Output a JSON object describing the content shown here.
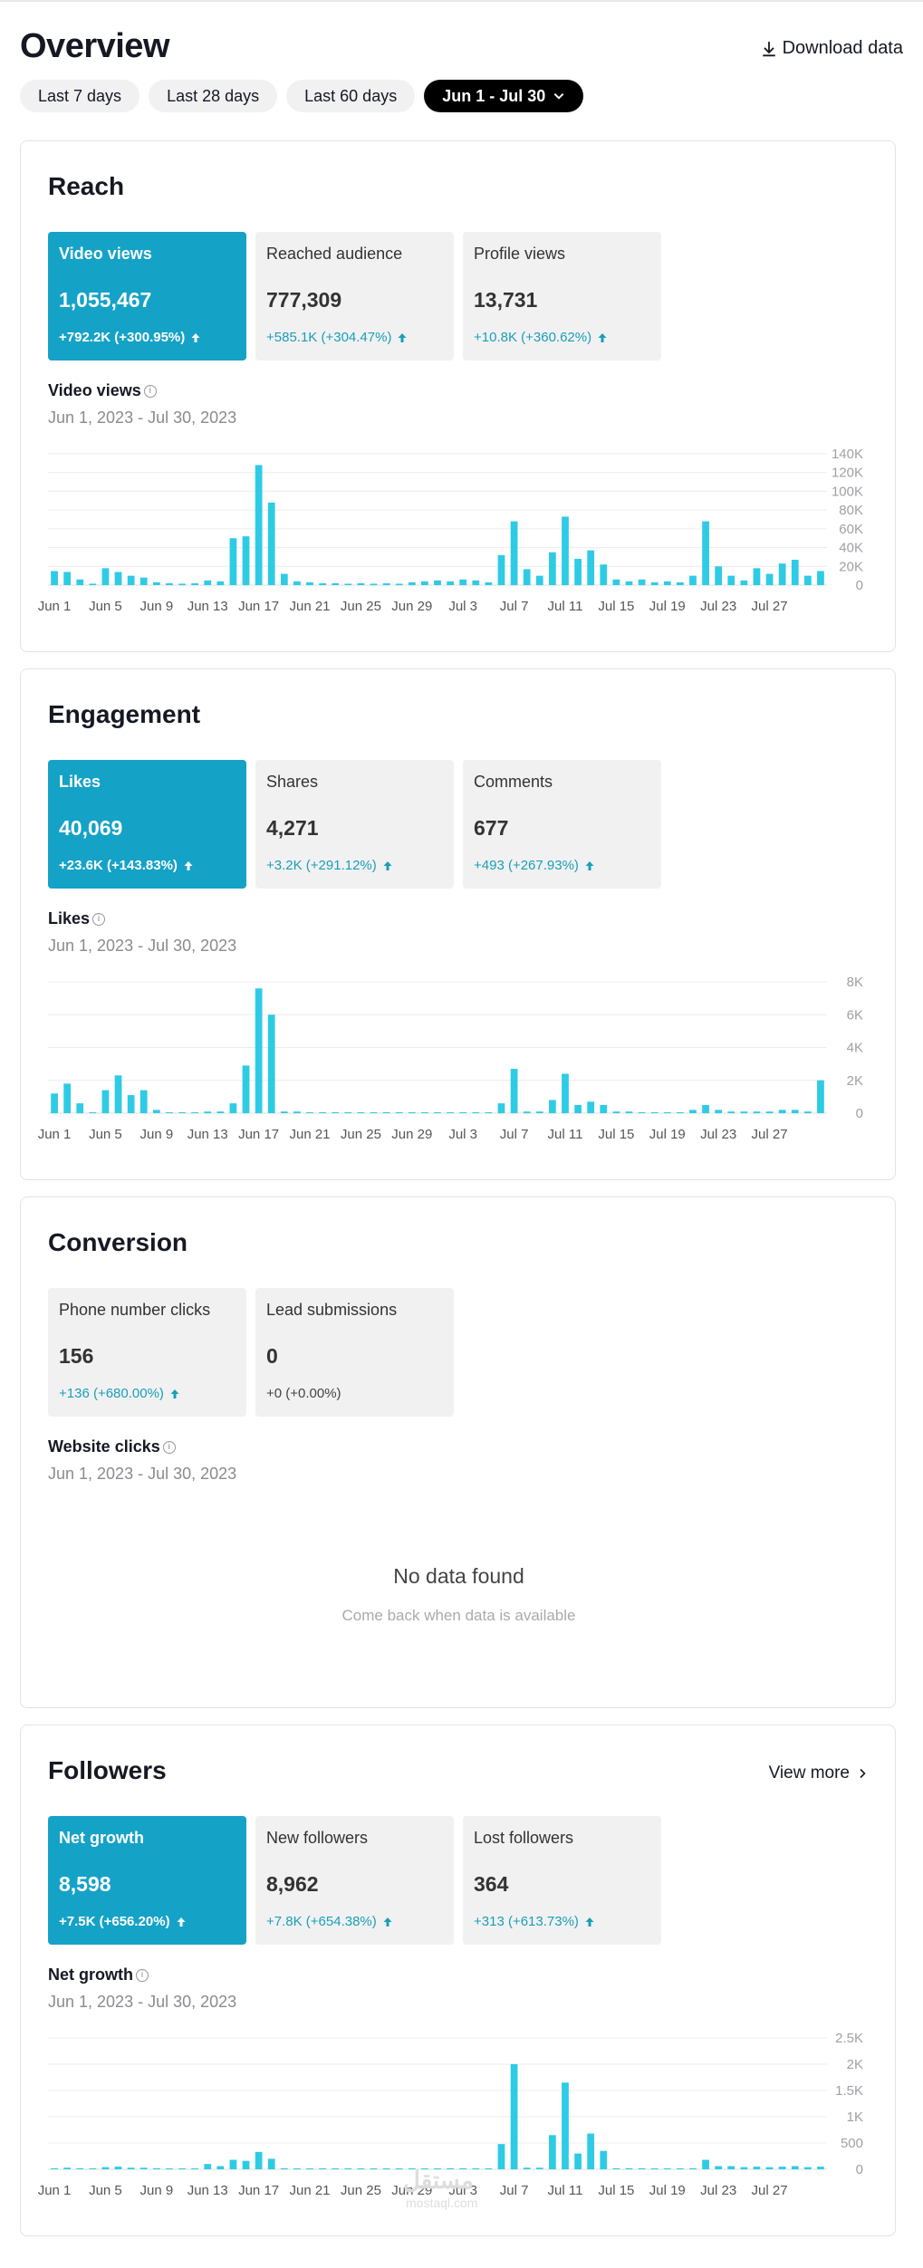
{
  "page": {
    "title": "Overview",
    "download_label": "Download data"
  },
  "filters": [
    {
      "label": "Last 7 days",
      "active": false
    },
    {
      "label": "Last 28 days",
      "active": false
    },
    {
      "label": "Last 60 days",
      "active": false
    },
    {
      "label": "Jun 1 - Jul 30",
      "active": true
    }
  ],
  "accent_color": "#15a2c7",
  "bar_color": "#2ecbe5",
  "reach": {
    "title": "Reach",
    "tiles": [
      {
        "label": "Video views",
        "value": "1,055,467",
        "delta": "+792.2K (+300.95%)",
        "active": true
      },
      {
        "label": "Reached audience",
        "value": "777,309",
        "delta": "+585.1K (+304.47%)",
        "active": false
      },
      {
        "label": "Profile views",
        "value": "13,731",
        "delta": "+10.8K (+360.62%)",
        "active": false
      }
    ],
    "chart_label": "Video views",
    "date_range": "Jun 1, 2023 - Jul 30, 2023"
  },
  "engagement": {
    "title": "Engagement",
    "tiles": [
      {
        "label": "Likes",
        "value": "40,069",
        "delta": "+23.6K (+143.83%)",
        "active": true
      },
      {
        "label": "Shares",
        "value": "4,271",
        "delta": "+3.2K (+291.12%)",
        "active": false
      },
      {
        "label": "Comments",
        "value": "677",
        "delta": "+493 (+267.93%)",
        "active": false
      }
    ],
    "chart_label": "Likes",
    "date_range": "Jun 1, 2023 - Jul 30, 2023"
  },
  "conversion": {
    "title": "Conversion",
    "tiles": [
      {
        "label": "Phone number clicks",
        "value": "156",
        "delta": "+136 (+680.00%)",
        "active": false
      },
      {
        "label": "Lead submissions",
        "value": "0",
        "delta": "+0 (+0.00%)",
        "active": false
      }
    ],
    "chart_label": "Website clicks",
    "date_range": "Jun 1, 2023 - Jul 30, 2023",
    "empty_title": "No data found",
    "empty_sub": "Come back when data is available"
  },
  "followers": {
    "title": "Followers",
    "view_more": "View more",
    "tiles": [
      {
        "label": "Net growth",
        "value": "8,598",
        "delta": "+7.5K (+656.20%)",
        "active": true
      },
      {
        "label": "New followers",
        "value": "8,962",
        "delta": "+7.8K (+654.38%)",
        "active": false
      },
      {
        "label": "Lost followers",
        "value": "364",
        "delta": "+313 (+613.73%)",
        "active": false
      }
    ],
    "chart_label": "Net growth",
    "date_range": "Jun 1, 2023 - Jul 30, 2023"
  },
  "watermark": {
    "text": "مستقل",
    "sub": "mostaql.com"
  },
  "chart_data": [
    {
      "type": "bar",
      "x_labels": [
        "Jun 1",
        "Jun 5",
        "Jun 9",
        "Jun 13",
        "Jun 17",
        "Jun 21",
        "Jun 25",
        "Jun 29",
        "Jul 3",
        "Jul 7",
        "Jul 11",
        "Jul 15",
        "Jul 19",
        "Jul 23",
        "Jul 27"
      ],
      "y_ticks": [
        "0",
        "20K",
        "40K",
        "60K",
        "80K",
        "100K",
        "120K",
        "140K"
      ],
      "ylim": [
        0,
        140000
      ],
      "values": [
        15000,
        14000,
        6000,
        1500,
        18000,
        14000,
        10000,
        8000,
        3000,
        2000,
        1500,
        2000,
        5000,
        4000,
        50000,
        52000,
        128000,
        88000,
        12000,
        4000,
        3000,
        2000,
        2000,
        1500,
        2000,
        1500,
        2000,
        1500,
        3000,
        4000,
        5000,
        4000,
        6000,
        5000,
        3000,
        32000,
        68000,
        17000,
        10000,
        35000,
        73000,
        28000,
        37000,
        22000,
        6000,
        4000,
        6000,
        3000,
        4000,
        3000,
        10000,
        68000,
        20000,
        10000,
        5000,
        18000,
        12000,
        23000,
        27000,
        10000,
        15000
      ],
      "grid": true
    },
    {
      "type": "bar",
      "x_labels": [
        "Jun 1",
        "Jun 5",
        "Jun 9",
        "Jun 13",
        "Jun 17",
        "Jun 21",
        "Jun 25",
        "Jun 29",
        "Jul 3",
        "Jul 7",
        "Jul 11",
        "Jul 15",
        "Jul 19",
        "Jul 23",
        "Jul 27"
      ],
      "y_ticks": [
        "0",
        "2K",
        "4K",
        "6K",
        "8K"
      ],
      "ylim": [
        0,
        8000
      ],
      "values": [
        1200,
        1800,
        600,
        0,
        1400,
        2300,
        1100,
        1400,
        200,
        0,
        0,
        0,
        100,
        100,
        600,
        2900,
        7600,
        6000,
        100,
        100,
        50,
        50,
        50,
        50,
        50,
        50,
        50,
        50,
        50,
        50,
        50,
        50,
        50,
        50,
        50,
        600,
        2700,
        100,
        100,
        800,
        2400,
        500,
        700,
        500,
        100,
        100,
        50,
        50,
        50,
        50,
        200,
        500,
        200,
        100,
        100,
        100,
        100,
        200,
        200,
        100,
        2000
      ],
      "grid": true
    },
    {
      "type": "bar",
      "x_labels": [
        "Jun 1",
        "Jun 5",
        "Jun 9",
        "Jun 13",
        "Jun 17",
        "Jun 21",
        "Jun 25",
        "Jun 29",
        "Jul 3",
        "Jul 7",
        "Jul 11",
        "Jul 15",
        "Jul 19",
        "Jul 23",
        "Jul 27"
      ],
      "y_ticks": [
        "0",
        "500",
        "1K",
        "1.5K",
        "2K",
        "2.5K"
      ],
      "ylim": [
        0,
        2500
      ],
      "values": [
        20,
        30,
        20,
        10,
        40,
        50,
        30,
        30,
        20,
        10,
        10,
        10,
        100,
        60,
        180,
        160,
        330,
        200,
        20,
        10,
        10,
        10,
        10,
        10,
        10,
        10,
        10,
        10,
        10,
        10,
        10,
        20,
        20,
        10,
        10,
        480,
        2000,
        30,
        30,
        650,
        1650,
        300,
        680,
        350,
        20,
        20,
        20,
        10,
        10,
        10,
        20,
        180,
        60,
        60,
        40,
        50,
        40,
        50,
        60,
        40,
        50
      ],
      "grid": true
    }
  ]
}
